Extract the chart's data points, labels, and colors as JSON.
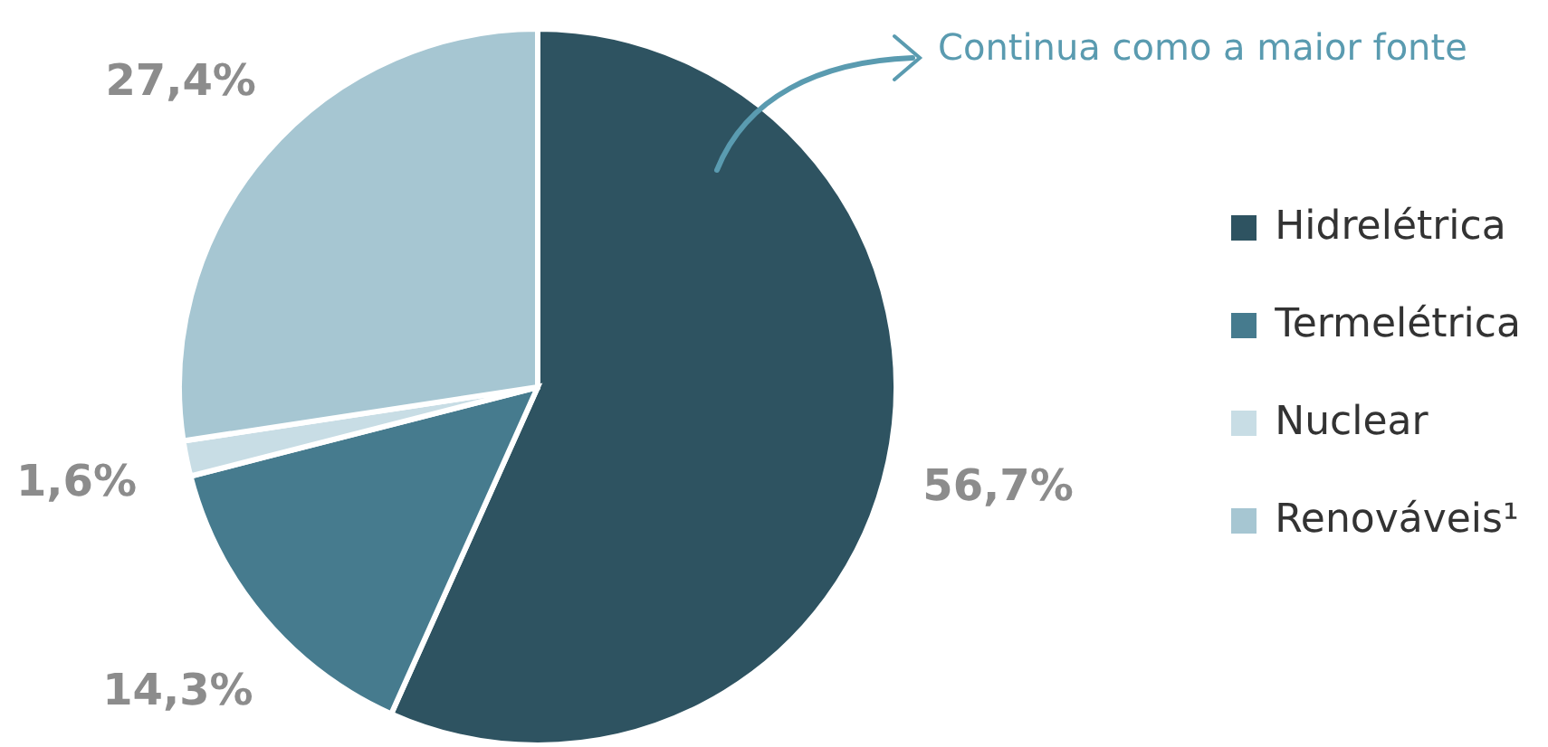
{
  "chart_data": {
    "type": "pie",
    "categories": [
      "Hidrelétrica",
      "Termelétrica",
      "Nuclear",
      "Renováveis¹"
    ],
    "values": [
      56.7,
      14.3,
      1.6,
      27.4
    ],
    "value_labels": [
      "56,7%",
      "14,3%",
      "1,6%",
      "27,4%"
    ],
    "colors": [
      "#2e5361",
      "#467b8e",
      "#c8dde5",
      "#a6c6d2"
    ],
    "annotations": [
      "Continua como a maior fonte"
    ],
    "legend": "right"
  }
}
